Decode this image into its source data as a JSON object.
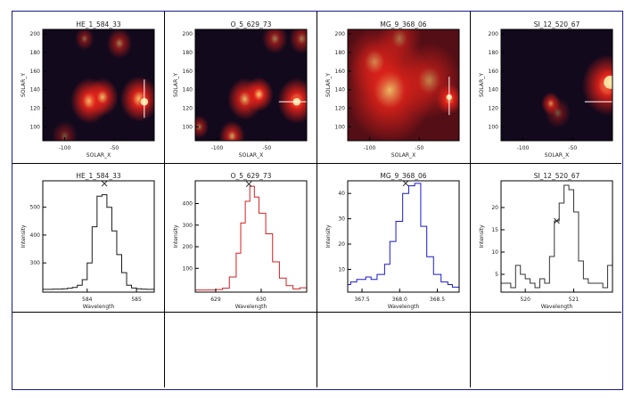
{
  "colors": {
    "frame": "#1a1a8a",
    "image_bg": "#1c1440",
    "blob": "#e8231a",
    "hot": "#fff2b0"
  },
  "chart_data": [
    {
      "type": "heatmap",
      "title": "HE_1_584_33",
      "xlabel": "SOLAR_X",
      "ylabel": "SOLAR_Y",
      "xlim": [
        -122,
        -10
      ],
      "ylim": [
        85,
        205
      ],
      "xticks": [
        "-100",
        "-50"
      ],
      "xtickvals": [
        -100,
        -50
      ],
      "yticks": [
        "200",
        "180",
        "160",
        "140",
        "120",
        "100"
      ],
      "ytickvals": [
        200,
        180,
        160,
        140,
        120,
        100
      ],
      "blobs": [
        [
          -75,
          128,
          12,
          1.0
        ],
        [
          -62,
          132,
          10,
          0.9
        ],
        [
          -25,
          130,
          12,
          1.0
        ],
        [
          -20,
          127,
          4,
          1.4
        ],
        [
          -45,
          190,
          8,
          0.6
        ],
        [
          -80,
          195,
          6,
          0.5
        ],
        [
          -100,
          90,
          8,
          0.4
        ]
      ],
      "crosshair": {
        "x": -20,
        "y": 127,
        "orient": "vertical"
      }
    },
    {
      "type": "heatmap",
      "title": "O_5_629_73",
      "xlabel": "SOLAR_X",
      "ylabel": "SOLAR_Y",
      "xlim": [
        -122,
        -10
      ],
      "ylim": [
        85,
        205
      ],
      "xticks": [
        "-100",
        "-50"
      ],
      "xtickvals": [
        -100,
        -50
      ],
      "yticks": [
        "200",
        "180",
        "160",
        "140",
        "120",
        "100"
      ],
      "ytickvals": [
        200,
        180,
        160,
        140,
        120,
        100
      ],
      "blobs": [
        [
          -72,
          130,
          11,
          0.9
        ],
        [
          -58,
          135,
          9,
          1.0
        ],
        [
          -20,
          128,
          12,
          1.1
        ],
        [
          -20,
          127,
          4,
          1.4
        ],
        [
          -85,
          90,
          8,
          0.8
        ],
        [
          -118,
          100,
          6,
          0.6
        ],
        [
          -42,
          195,
          8,
          0.6
        ],
        [
          -15,
          195,
          8,
          0.6
        ]
      ],
      "crosshair": {
        "x": -20,
        "y": 127,
        "orient": "horizontal"
      }
    },
    {
      "type": "heatmap",
      "title": "MG_9_368_06",
      "xlabel": "SOLAR_X",
      "ylabel": "SOLAR_Y",
      "xlim": [
        -122,
        -10
      ],
      "ylim": [
        85,
        205
      ],
      "xticks": [
        "-100",
        "-50"
      ],
      "xtickvals": [
        -100,
        -50
      ],
      "yticks": [
        "200",
        "180",
        "160",
        "140",
        "120",
        "100"
      ],
      "ytickvals": [
        200,
        180,
        160,
        140,
        120,
        100
      ],
      "blobs": [
        [
          -80,
          140,
          28,
          0.9
        ],
        [
          -95,
          170,
          18,
          0.6
        ],
        [
          -40,
          150,
          20,
          0.6
        ],
        [
          -20,
          130,
          8,
          1.1
        ],
        [
          -20,
          132,
          3,
          1.4
        ],
        [
          -70,
          195,
          14,
          0.5
        ]
      ],
      "crosshair": {
        "x": -20,
        "y": 130,
        "orient": "vertical"
      }
    },
    {
      "type": "heatmap",
      "title": "SI_12_520_67",
      "xlabel": "SOLAR_X",
      "ylabel": "SOLAR_Y",
      "xlim": [
        -122,
        -10
      ],
      "ylim": [
        85,
        205
      ],
      "xticks": [
        "-100",
        "-50"
      ],
      "xtickvals": [
        -100,
        -50
      ],
      "yticks": [
        "200",
        "180",
        "160",
        "140",
        "120",
        "100"
      ],
      "ytickvals": [
        200,
        180,
        160,
        140,
        120,
        100
      ],
      "blobs": [
        [
          -15,
          145,
          16,
          1.1
        ],
        [
          -12,
          148,
          7,
          1.4
        ],
        [
          -72,
          125,
          6,
          0.8
        ],
        [
          -65,
          115,
          8,
          0.4
        ]
      ],
      "crosshair": {
        "x": -20,
        "y": 127,
        "orient": "horizontal"
      }
    },
    {
      "type": "line",
      "title": "HE_1_584_33",
      "xlabel": "Wavelength",
      "ylabel": "Intensity",
      "xlim": [
        583.1,
        585.36
      ],
      "ylim": [
        195,
        595
      ],
      "xticks": [
        "584",
        "585"
      ],
      "xtickvals": [
        584,
        585
      ],
      "yticks": [
        "500",
        "400",
        "300"
      ],
      "ytickvals": [
        500,
        400,
        300
      ],
      "x": [
        583.1,
        583.2,
        583.3,
        583.4,
        583.5,
        583.6,
        583.7,
        583.8,
        583.9,
        584.0,
        584.1,
        584.2,
        584.3,
        584.4,
        584.5,
        584.6,
        584.7,
        584.8,
        584.9,
        585.0,
        585.1,
        585.2
      ],
      "y": [
        205,
        205,
        206,
        206,
        207,
        209,
        212,
        220,
        240,
        300,
        430,
        540,
        545,
        500,
        415,
        330,
        265,
        220,
        210,
        207,
        206,
        205
      ],
      "marker": [
        584.35,
        585
      ]
    },
    {
      "type": "line",
      "title": "O_5_629_73",
      "xlabel": "Wavelength",
      "ylabel": "Intensity",
      "xlim": [
        628.55,
        631.0
      ],
      "ylim": [
        -10,
        505
      ],
      "xticks": [
        "629",
        "630"
      ],
      "xtickvals": [
        629,
        630
      ],
      "yticks": [
        "400",
        "300",
        "200",
        "100"
      ],
      "ytickvals": [
        400,
        300,
        200,
        100
      ],
      "x": [
        628.55,
        628.7,
        628.85,
        629.0,
        629.15,
        629.3,
        629.45,
        629.55,
        629.65,
        629.75,
        629.85,
        629.95,
        630.1,
        630.25,
        630.4,
        630.55,
        630.7,
        630.85
      ],
      "y": [
        0,
        0,
        0,
        2,
        8,
        60,
        170,
        310,
        410,
        480,
        430,
        355,
        260,
        130,
        55,
        20,
        5,
        10
      ],
      "marker": [
        629.73,
        490
      ]
    },
    {
      "type": "line",
      "title": "MG_9_368_06",
      "xlabel": "Wavelength",
      "ylabel": "Intensity",
      "xlim": [
        367.31,
        368.79
      ],
      "ylim": [
        1,
        45
      ],
      "xticks": [
        "367.5",
        "368.0",
        "368.5"
      ],
      "xtickvals": [
        367.5,
        368.0,
        368.5
      ],
      "yticks": [
        "40",
        "30",
        "20",
        "10"
      ],
      "ytickvals": [
        40,
        30,
        20,
        10
      ],
      "x": [
        367.31,
        367.35,
        367.43,
        367.55,
        367.62,
        367.7,
        367.8,
        367.87,
        367.95,
        368.04,
        368.12,
        368.2,
        368.28,
        368.36,
        368.45,
        368.55,
        368.64,
        368.7
      ],
      "y": [
        4,
        5,
        6,
        7,
        6,
        8,
        12,
        21,
        29,
        40,
        43,
        44,
        27,
        15,
        8,
        5,
        4,
        3
      ],
      "marker": [
        368.08,
        44
      ]
    },
    {
      "type": "line",
      "title": "SI_12_520_67",
      "xlabel": "Wavelength",
      "ylabel": "Intensity",
      "xlim": [
        519.5,
        521.8
      ],
      "ylim": [
        1,
        26
      ],
      "xticks": [
        "520",
        "521"
      ],
      "xtickvals": [
        520,
        521
      ],
      "yticks": [
        "20",
        "15",
        "10",
        "5"
      ],
      "ytickvals": [
        20,
        15,
        10,
        5
      ],
      "x": [
        519.5,
        519.6,
        519.7,
        519.8,
        519.9,
        520.0,
        520.1,
        520.2,
        520.3,
        520.4,
        520.5,
        520.6,
        520.7,
        520.8,
        520.9,
        521.0,
        521.1,
        521.2,
        521.3,
        521.4,
        521.5,
        521.6,
        521.7
      ],
      "y": [
        3,
        3,
        2,
        7,
        5,
        4,
        3,
        2,
        4,
        3,
        9,
        17,
        21,
        25,
        24,
        19,
        8,
        4,
        3,
        3,
        3,
        2,
        7
      ],
      "marker": [
        520.65,
        17
      ]
    }
  ]
}
